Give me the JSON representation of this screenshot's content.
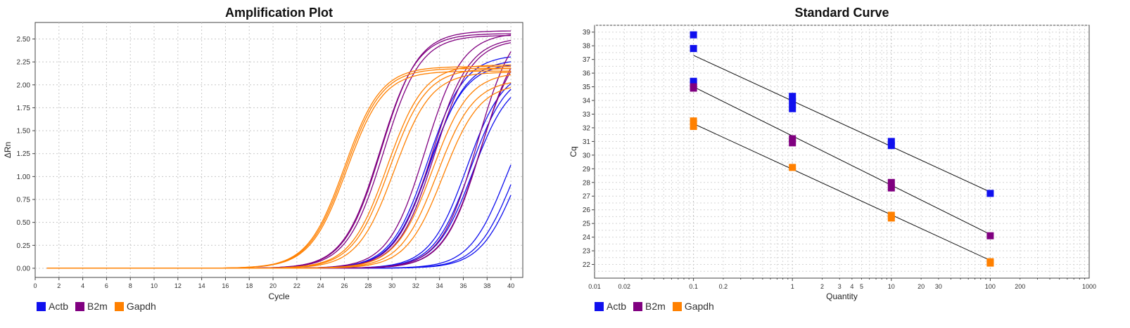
{
  "colors": {
    "Actb": "#1010ee",
    "B2m": "#800080",
    "Gapdh": "#ff8000"
  },
  "chart_data": [
    {
      "type": "line",
      "title": "Amplification Plot",
      "xlabel": "Cycle",
      "ylabel": "ΔRn",
      "xlim": [
        0,
        41
      ],
      "ylim": [
        -0.1,
        2.68
      ],
      "x_ticks": [
        0,
        2,
        4,
        6,
        8,
        10,
        12,
        14,
        16,
        18,
        20,
        22,
        24,
        26,
        28,
        30,
        32,
        34,
        36,
        38,
        40
      ],
      "y_ticks": [
        "0.00",
        "0.25",
        "0.50",
        "0.75",
        "1.00",
        "1.25",
        "1.50",
        "1.75",
        "2.00",
        "2.25",
        "2.50"
      ],
      "grid": true,
      "legend_position": "bottom-left",
      "series_model": "sigmoid curves, x from 1 to 40 cycles: y = max / (1 + exp(-(x - midpoint) / slope))",
      "series": [
        {
          "name": "Actb",
          "color_key": "Actb",
          "curves": [
            {
              "max": 2.33,
              "mid": 33.0,
              "k": 1.55
            },
            {
              "max": 2.28,
              "mid": 33.2,
              "k": 1.55
            },
            {
              "max": 2.24,
              "mid": 33.1,
              "k": 1.55
            },
            {
              "max": 2.2,
              "mid": 36.3,
              "k": 1.55
            },
            {
              "max": 2.17,
              "mid": 36.6,
              "k": 1.55
            },
            {
              "max": 2.1,
              "mid": 36.8,
              "k": 1.55
            },
            {
              "max": 2.0,
              "mid": 39.6,
              "k": 1.55
            },
            {
              "max": 1.95,
              "mid": 40.2,
              "k": 1.55
            },
            {
              "max": 1.9,
              "mid": 40.5,
              "k": 1.55
            }
          ]
        },
        {
          "name": "B2m",
          "color_key": "B2m",
          "curves": [
            {
              "max": 2.59,
              "mid": 29.1,
              "k": 1.55
            },
            {
              "max": 2.56,
              "mid": 29.0,
              "k": 1.55
            },
            {
              "max": 2.54,
              "mid": 29.3,
              "k": 1.55
            },
            {
              "max": 2.57,
              "mid": 32.8,
              "k": 1.55
            },
            {
              "max": 2.52,
              "mid": 33.4,
              "k": 1.55
            },
            {
              "max": 2.5,
              "mid": 33.6,
              "k": 1.55
            },
            {
              "max": 2.75,
              "mid": 37.2,
              "k": 1.55
            },
            {
              "max": 2.62,
              "mid": 37.5,
              "k": 1.55
            },
            {
              "max": 2.55,
              "mid": 37.4,
              "k": 1.55
            }
          ]
        },
        {
          "name": "Gapdh",
          "color_key": "Gapdh",
          "curves": [
            {
              "max": 2.2,
              "mid": 26.0,
              "k": 1.55
            },
            {
              "max": 2.18,
              "mid": 26.1,
              "k": 1.55
            },
            {
              "max": 2.15,
              "mid": 26.2,
              "k": 1.55
            },
            {
              "max": 2.22,
              "mid": 29.6,
              "k": 1.55
            },
            {
              "max": 2.18,
              "mid": 29.8,
              "k": 1.55
            },
            {
              "max": 2.14,
              "mid": 30.2,
              "k": 1.55
            },
            {
              "max": 2.14,
              "mid": 33.4,
              "k": 1.55
            },
            {
              "max": 2.06,
              "mid": 33.8,
              "k": 1.55
            },
            {
              "max": 2.02,
              "mid": 34.3,
              "k": 1.55
            }
          ]
        }
      ]
    },
    {
      "type": "scatter",
      "title": "Standard Curve",
      "xlabel": "Quantity",
      "ylabel": "Cq",
      "x_scale": "log",
      "xlim": [
        0.01,
        1000
      ],
      "ylim": [
        21,
        39.5
      ],
      "x_tick_labels": [
        {
          "value": 0.01,
          "label": "0.01"
        },
        {
          "value": 0.02,
          "label": "0.02"
        },
        {
          "value": 0.1,
          "label": "0.1"
        },
        {
          "value": 0.2,
          "label": "0.2"
        },
        {
          "value": 1,
          "label": "1"
        },
        {
          "value": 2,
          "label": "2"
        },
        {
          "value": 3,
          "label": "3"
        },
        {
          "value": 4,
          "label": "4"
        },
        {
          "value": 5,
          "label": "5"
        },
        {
          "value": 10,
          "label": "10"
        },
        {
          "value": 20,
          "label": "20"
        },
        {
          "value": 30,
          "label": "30"
        },
        {
          "value": 100,
          "label": "100"
        },
        {
          "value": 200,
          "label": "200"
        },
        {
          "value": 1000,
          "label": "1000"
        }
      ],
      "y_tick_labels": [
        {
          "value": 22,
          "label": "22"
        },
        {
          "value": 23,
          "label": "23"
        },
        {
          "value": 24,
          "label": "24"
        },
        {
          "value": 25,
          "label": "25"
        },
        {
          "value": 26,
          "label": "26"
        },
        {
          "value": 27,
          "label": "27"
        },
        {
          "value": 28,
          "label": "28"
        },
        {
          "value": 29,
          "label": "29"
        },
        {
          "value": 30,
          "label": "30"
        },
        {
          "value": 31,
          "label": "31"
        },
        {
          "value": 32,
          "label": "32"
        },
        {
          "value": 33,
          "label": "33"
        },
        {
          "value": 34,
          "label": "34"
        },
        {
          "value": 35,
          "label": "35"
        },
        {
          "value": 36,
          "label": "36"
        },
        {
          "value": 37,
          "label": "37"
        },
        {
          "value": 38,
          "label": "38"
        },
        {
          "value": 39,
          "label": "39"
        }
      ],
      "grid": true,
      "legend_position": "bottom-left",
      "series": [
        {
          "name": "Actb",
          "color_key": "Actb",
          "points": [
            [
              0.1,
              38.8
            ],
            [
              0.1,
              37.8
            ],
            [
              0.1,
              35.4
            ],
            [
              0.1,
              35.2
            ],
            [
              1,
              34.3
            ],
            [
              1,
              33.9
            ],
            [
              1,
              33.4
            ],
            [
              10,
              31.0
            ],
            [
              10,
              30.7
            ],
            [
              100,
              27.2
            ]
          ],
          "fit": [
            [
              0.1,
              37.3
            ],
            [
              100,
              27.3
            ]
          ]
        },
        {
          "name": "B2m",
          "color_key": "B2m",
          "points": [
            [
              0.1,
              35.0
            ],
            [
              0.1,
              34.9
            ],
            [
              1,
              31.2
            ],
            [
              1,
              30.9
            ],
            [
              10,
              28.0
            ],
            [
              10,
              27.6
            ],
            [
              100,
              24.1
            ]
          ],
          "fit": [
            [
              0.1,
              35.0
            ],
            [
              100,
              24.2
            ]
          ]
        },
        {
          "name": "Gapdh",
          "color_key": "Gapdh",
          "points": [
            [
              0.1,
              32.5
            ],
            [
              0.1,
              32.1
            ],
            [
              1,
              29.1
            ],
            [
              10,
              25.6
            ],
            [
              10,
              25.4
            ],
            [
              100,
              22.2
            ],
            [
              100,
              22.1
            ]
          ],
          "fit": [
            [
              0.1,
              32.3
            ],
            [
              100,
              22.3
            ]
          ]
        }
      ]
    }
  ]
}
